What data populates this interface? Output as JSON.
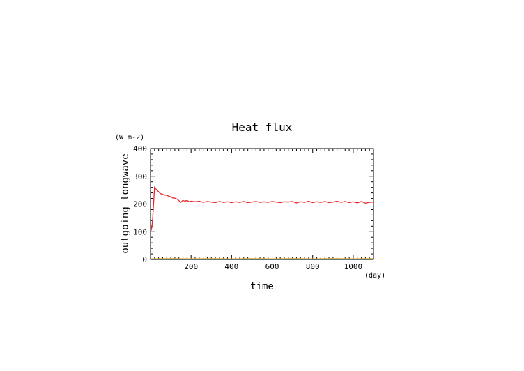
{
  "chart_data": {
    "type": "line",
    "title": "Heat flux",
    "xlabel": "time",
    "xunit": "(day)",
    "ylabel": "outgoing longwave",
    "yunit": "(W m-2)",
    "xlim": [
      0,
      1100
    ],
    "ylim": [
      0,
      400
    ],
    "xticks": [
      200,
      400,
      600,
      800,
      1000
    ],
    "yticks": [
      0,
      100,
      200,
      300,
      400
    ],
    "grid": false,
    "series": [
      {
        "color": "#e8262b",
        "x": [
          0,
          5,
          10,
          15,
          20,
          25,
          30,
          40,
          50,
          60,
          70,
          80,
          90,
          100,
          110,
          120,
          130,
          140,
          150,
          160,
          170,
          180,
          190,
          200,
          220,
          240,
          260,
          280,
          300,
          320,
          340,
          360,
          380,
          400,
          420,
          440,
          460,
          480,
          500,
          520,
          540,
          560,
          580,
          600,
          620,
          640,
          660,
          680,
          700,
          720,
          740,
          760,
          780,
          800,
          820,
          840,
          860,
          880,
          900,
          920,
          940,
          960,
          980,
          1000,
          1020,
          1040,
          1060,
          1080,
          1100
        ],
        "y": [
          100,
          110,
          140,
          200,
          262,
          255,
          252,
          244,
          237,
          235,
          232,
          232,
          228,
          226,
          222,
          221,
          218,
          212,
          206,
          213,
          210,
          213,
          208,
          210,
          208,
          210,
          206,
          209,
          207,
          205,
          209,
          206,
          208,
          205,
          208,
          206,
          209,
          205,
          207,
          209,
          206,
          208,
          206,
          209,
          207,
          205,
          208,
          207,
          209,
          204,
          208,
          206,
          210,
          205,
          208,
          206,
          209,
          205,
          207,
          210,
          206,
          209,
          205,
          208,
          204,
          209,
          203,
          206,
          207
        ]
      },
      {
        "color": "#f5a623",
        "x": [
          0,
          100,
          200,
          300,
          400,
          500,
          600,
          700,
          800,
          900,
          1000,
          1100
        ],
        "y": [
          2,
          3,
          2,
          3,
          2,
          3,
          2,
          3,
          2,
          3,
          2,
          3
        ]
      },
      {
        "color": "#7ac943",
        "x": [
          0,
          100,
          200,
          300,
          400,
          500,
          600,
          700,
          800,
          900,
          1000,
          1100
        ],
        "y": [
          1,
          1.5,
          1,
          1.5,
          1,
          1.5,
          1,
          1.5,
          1,
          1.5,
          1,
          1.5
        ]
      },
      {
        "color": "#29abe2",
        "x": [
          0,
          1100
        ],
        "y": [
          0,
          0
        ]
      }
    ]
  }
}
